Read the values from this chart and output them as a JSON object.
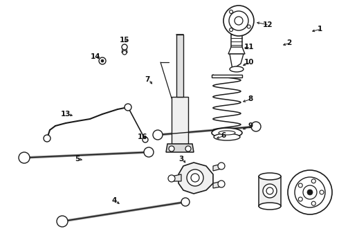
{
  "bg_color": "#ffffff",
  "lc": "#1a1a1a",
  "figsize": [
    4.9,
    3.6
  ],
  "dpi": 100,
  "labels": {
    "1": [
      456,
      48,
      447,
      46,
      442,
      40
    ],
    "2": [
      415,
      68,
      405,
      66,
      398,
      64
    ],
    "3": [
      265,
      232,
      268,
      234,
      272,
      240
    ],
    "4": [
      165,
      285,
      176,
      292,
      185,
      295
    ],
    "5": [
      115,
      232,
      124,
      237,
      133,
      240
    ],
    "6": [
      320,
      198,
      313,
      203,
      302,
      207
    ],
    "7": [
      215,
      118,
      222,
      124,
      232,
      130
    ],
    "8": [
      360,
      148,
      350,
      153,
      338,
      155
    ],
    "9": [
      360,
      185,
      350,
      188,
      340,
      190
    ],
    "10": [
      358,
      95,
      348,
      98,
      340,
      100
    ],
    "11": [
      358,
      72,
      348,
      72,
      342,
      72
    ],
    "12": [
      385,
      40,
      372,
      38,
      362,
      36
    ],
    "13": [
      98,
      168,
      110,
      170,
      122,
      172
    ],
    "14": [
      140,
      85,
      148,
      90,
      155,
      95
    ],
    "15": [
      182,
      62,
      182,
      70,
      180,
      76
    ],
    "16": [
      208,
      200,
      212,
      203,
      216,
      207
    ]
  }
}
